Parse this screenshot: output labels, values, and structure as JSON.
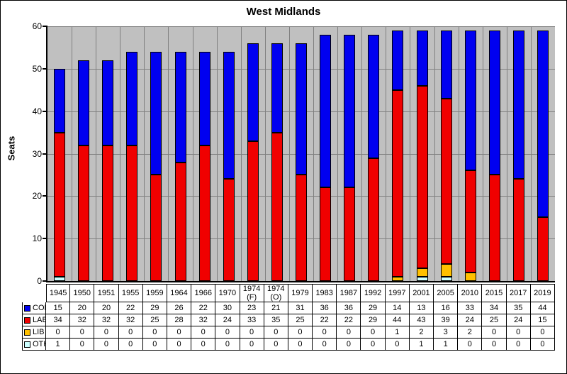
{
  "chart_data": {
    "type": "bar",
    "stacked": true,
    "title": "West Midlands",
    "ylabel": "Seats",
    "xlabel": "",
    "ylim": [
      0,
      60
    ],
    "yticks": [
      0,
      10,
      20,
      30,
      40,
      50,
      60
    ],
    "grid": true,
    "legend_position": "table-left",
    "categories": [
      "1945",
      "1950",
      "1951",
      "1955",
      "1959",
      "1964",
      "1966",
      "1970",
      "1974 (F)",
      "1974 (O)",
      "1979",
      "1983",
      "1987",
      "1992",
      "1997",
      "2001",
      "2005",
      "2010",
      "2015",
      "2017",
      "2019"
    ],
    "series": [
      {
        "name": "CON",
        "color": "#0000F0",
        "values": [
          15,
          20,
          20,
          22,
          29,
          26,
          22,
          30,
          23,
          21,
          31,
          36,
          36,
          29,
          14,
          13,
          16,
          33,
          34,
          35,
          44
        ]
      },
      {
        "name": "LAB",
        "color": "#F00000",
        "values": [
          34,
          32,
          32,
          32,
          25,
          28,
          32,
          24,
          33,
          35,
          25,
          22,
          22,
          29,
          44,
          43,
          39,
          24,
          25,
          24,
          15
        ]
      },
      {
        "name": "LIB",
        "color": "#FFC000",
        "values": [
          0,
          0,
          0,
          0,
          0,
          0,
          0,
          0,
          0,
          0,
          0,
          0,
          0,
          0,
          1,
          2,
          3,
          2,
          0,
          0,
          0
        ]
      },
      {
        "name": "OTH",
        "color": "#CCFFFF",
        "values": [
          1,
          0,
          0,
          0,
          0,
          0,
          0,
          0,
          0,
          0,
          0,
          0,
          0,
          0,
          0,
          1,
          1,
          0,
          0,
          0,
          0
        ]
      }
    ],
    "stack_order_bottom_to_top": [
      "OTH",
      "LIB",
      "LAB",
      "CON"
    ],
    "colors": {
      "plot_background": "#C0C0C0",
      "gridline": "#808080",
      "bar_border": "#000000",
      "axis": "#000000",
      "text": "#000000",
      "chart_background": "#FFFFFF"
    }
  }
}
